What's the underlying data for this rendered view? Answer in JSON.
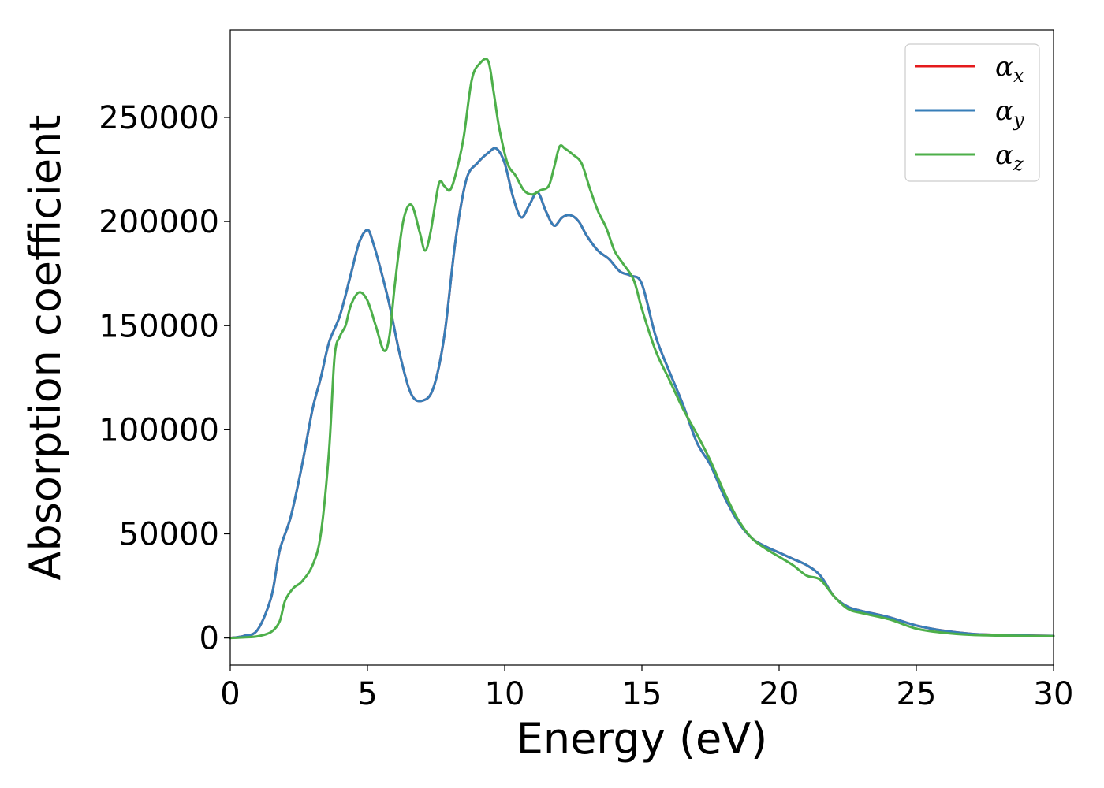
{
  "chart_data": {
    "type": "line",
    "title": "",
    "xlabel": "Energy (eV)",
    "ylabel": "Absorption coefficient",
    "xlim": [
      0,
      30
    ],
    "ylim": [
      -13000,
      292000
    ],
    "xticks": [
      0,
      5,
      10,
      15,
      20,
      25,
      30
    ],
    "yticks": [
      0,
      50000,
      100000,
      150000,
      200000,
      250000
    ],
    "grid": false,
    "legend_position": "top-right",
    "series": [
      {
        "name": "α_x",
        "symbol": "α",
        "subscript": "x",
        "color": "#e41a1c",
        "x": [
          0,
          0.5,
          1.0,
          1.5,
          1.8,
          2.2,
          2.6,
          3.0,
          3.3,
          3.6,
          4.0,
          4.4,
          4.7,
          5.0,
          5.2,
          5.5,
          5.8,
          6.2,
          6.6,
          7.0,
          7.4,
          7.8,
          8.2,
          8.6,
          9.0,
          9.4,
          9.7,
          10.0,
          10.3,
          10.6,
          10.9,
          11.2,
          11.5,
          11.8,
          12.1,
          12.4,
          12.7,
          13.0,
          13.4,
          13.8,
          14.2,
          14.6,
          15.0,
          15.5,
          16.0,
          16.5,
          17.0,
          17.5,
          18.0,
          18.5,
          19.0,
          19.5,
          20.0,
          20.5,
          21.0,
          21.5,
          22.0,
          22.5,
          23.0,
          24.0,
          25.0,
          26.0,
          27.0,
          28.0,
          29.0,
          30.0
        ],
        "values": [
          0,
          1000,
          4000,
          20000,
          42000,
          58000,
          82000,
          110000,
          125000,
          142000,
          155000,
          175000,
          190000,
          196000,
          190000,
          176000,
          160000,
          135000,
          117000,
          114000,
          120000,
          145000,
          190000,
          220000,
          228000,
          233000,
          235000,
          228000,
          212000,
          202000,
          208000,
          214000,
          205000,
          198000,
          202000,
          203000,
          200000,
          193000,
          186000,
          182000,
          176000,
          174000,
          170000,
          145000,
          128000,
          112000,
          94000,
          83000,
          68000,
          56000,
          48000,
          44000,
          41000,
          38000,
          35000,
          30000,
          20000,
          15000,
          13000,
          10000,
          6000,
          3500,
          2000,
          1500,
          1200,
          1000
        ]
      },
      {
        "name": "α_y",
        "symbol": "α",
        "subscript": "y",
        "color": "#377eb8",
        "x": [
          0,
          0.5,
          1.0,
          1.5,
          1.8,
          2.2,
          2.6,
          3.0,
          3.3,
          3.6,
          4.0,
          4.4,
          4.7,
          5.0,
          5.2,
          5.5,
          5.8,
          6.2,
          6.6,
          7.0,
          7.4,
          7.8,
          8.2,
          8.6,
          9.0,
          9.4,
          9.7,
          10.0,
          10.3,
          10.6,
          10.9,
          11.2,
          11.5,
          11.8,
          12.1,
          12.4,
          12.7,
          13.0,
          13.4,
          13.8,
          14.2,
          14.6,
          15.0,
          15.5,
          16.0,
          16.5,
          17.0,
          17.5,
          18.0,
          18.5,
          19.0,
          19.5,
          20.0,
          20.5,
          21.0,
          21.5,
          22.0,
          22.5,
          23.0,
          24.0,
          25.0,
          26.0,
          27.0,
          28.0,
          29.0,
          30.0
        ],
        "values": [
          0,
          1000,
          4000,
          20000,
          42000,
          58000,
          82000,
          110000,
          125000,
          142000,
          155000,
          175000,
          190000,
          196000,
          190000,
          176000,
          160000,
          135000,
          117000,
          114000,
          120000,
          145000,
          190000,
          220000,
          228000,
          233000,
          235000,
          228000,
          212000,
          202000,
          208000,
          214000,
          205000,
          198000,
          202000,
          203000,
          200000,
          193000,
          186000,
          182000,
          176000,
          174000,
          170000,
          145000,
          128000,
          112000,
          94000,
          83000,
          68000,
          56000,
          48000,
          44000,
          41000,
          38000,
          35000,
          30000,
          20000,
          15000,
          13000,
          10000,
          6000,
          3500,
          2000,
          1500,
          1200,
          1000
        ]
      },
      {
        "name": "α_z",
        "symbol": "α",
        "subscript": "z",
        "color": "#4daf4a",
        "x": [
          0,
          0.5,
          1.0,
          1.5,
          1.8,
          2.0,
          2.3,
          2.6,
          3.0,
          3.3,
          3.6,
          3.8,
          4.0,
          4.2,
          4.4,
          4.7,
          5.0,
          5.3,
          5.6,
          5.8,
          6.0,
          6.3,
          6.6,
          6.9,
          7.1,
          7.3,
          7.6,
          7.8,
          8.0,
          8.2,
          8.5,
          8.8,
          9.1,
          9.4,
          9.6,
          9.8,
          10.1,
          10.4,
          10.7,
          11.0,
          11.3,
          11.6,
          11.8,
          12.0,
          12.2,
          12.5,
          12.8,
          13.1,
          13.4,
          13.7,
          14.0,
          14.3,
          14.7,
          15.0,
          15.5,
          16.0,
          16.5,
          17.0,
          17.5,
          18.0,
          18.5,
          19.0,
          19.5,
          20.0,
          20.5,
          21.0,
          21.5,
          22.0,
          22.5,
          23.0,
          24.0,
          25.0,
          26.0,
          27.0,
          28.0,
          29.0,
          30.0
        ],
        "values": [
          0,
          300,
          800,
          3000,
          8000,
          18000,
          24000,
          27000,
          35000,
          50000,
          90000,
          135000,
          145000,
          150000,
          160000,
          166000,
          162000,
          150000,
          138000,
          145000,
          170000,
          200000,
          208000,
          195000,
          186000,
          195000,
          218000,
          217000,
          215000,
          222000,
          240000,
          268000,
          276000,
          277000,
          262000,
          245000,
          228000,
          222000,
          215000,
          213000,
          215000,
          217000,
          226000,
          236000,
          235000,
          232000,
          228000,
          216000,
          205000,
          197000,
          186000,
          180000,
          172000,
          158000,
          138000,
          124000,
          110000,
          98000,
          85000,
          70000,
          57000,
          48000,
          43000,
          39000,
          35000,
          30000,
          28000,
          20000,
          14000,
          12000,
          9000,
          4500,
          2500,
          1500,
          1200,
          1000,
          900
        ]
      }
    ]
  }
}
